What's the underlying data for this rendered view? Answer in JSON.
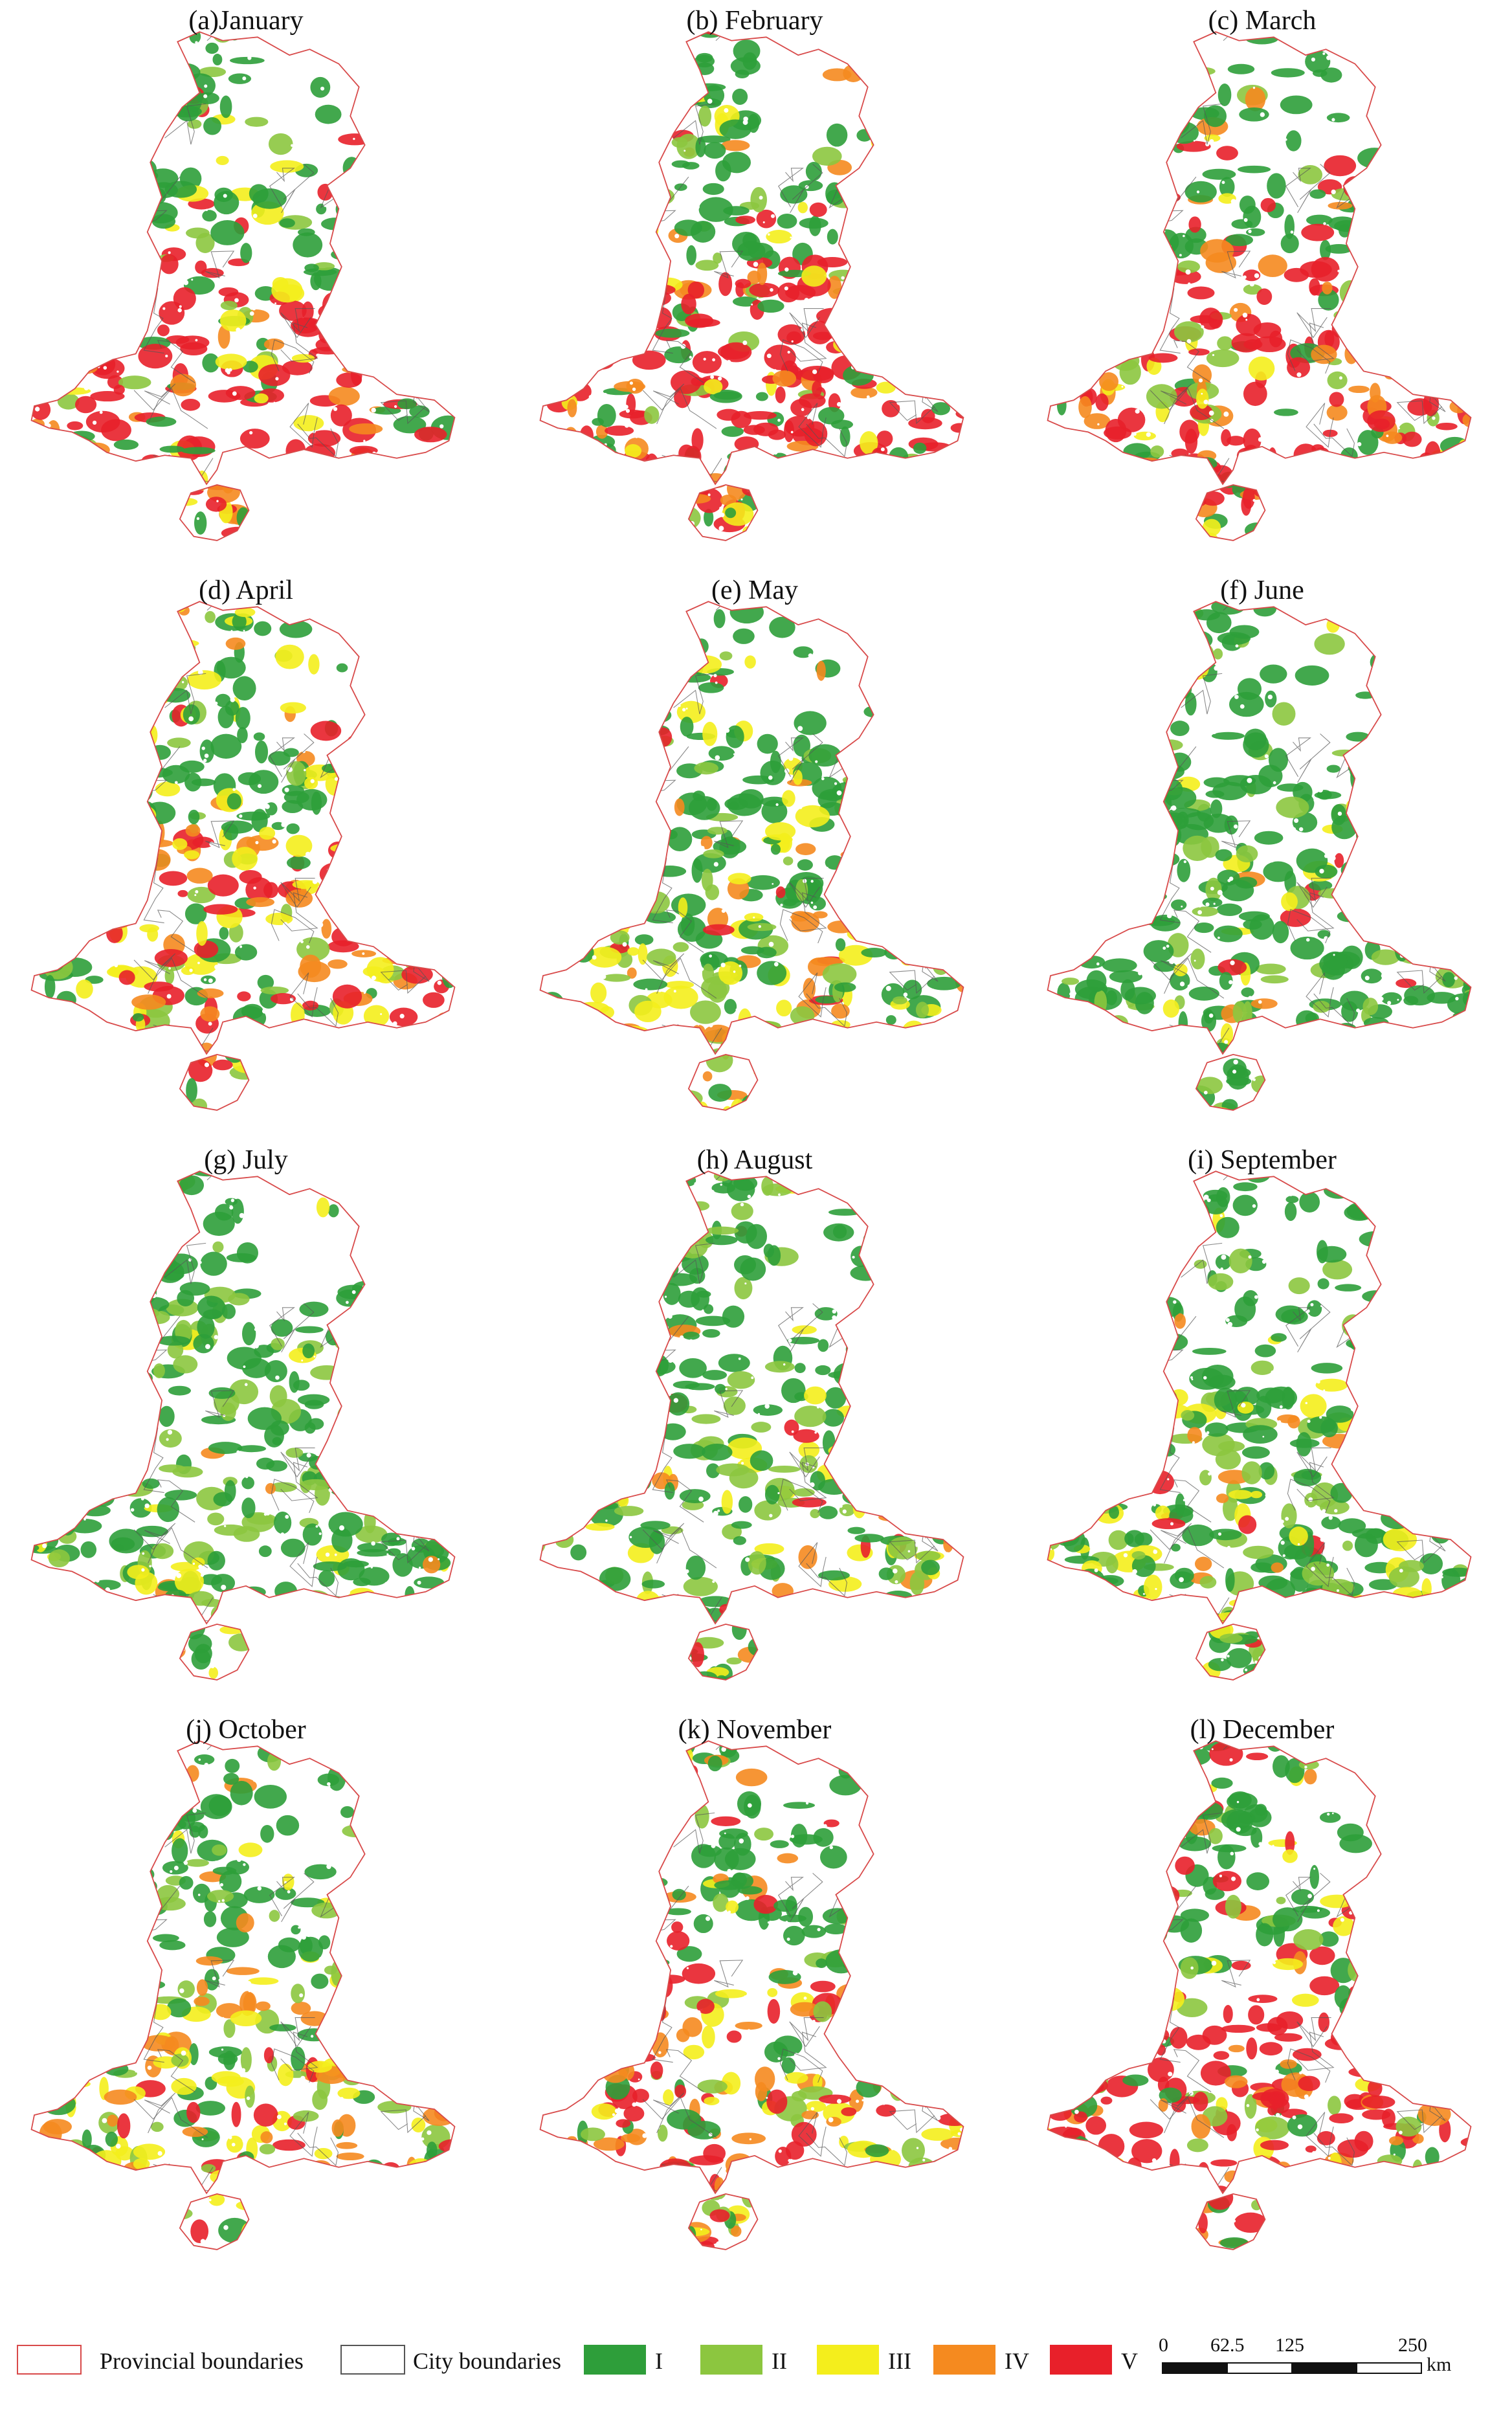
{
  "figure": {
    "panels": [
      {
        "label": "(a)January",
        "mix": [
          0.22,
          0.1,
          0.1,
          0.13,
          0.45
        ]
      },
      {
        "label": "(b) February",
        "mix": [
          0.23,
          0.1,
          0.1,
          0.12,
          0.45
        ]
      },
      {
        "label": "(c) March",
        "mix": [
          0.2,
          0.1,
          0.1,
          0.17,
          0.43
        ]
      },
      {
        "label": "(d) April",
        "mix": [
          0.27,
          0.12,
          0.25,
          0.18,
          0.18
        ]
      },
      {
        "label": "(e) May",
        "mix": [
          0.45,
          0.2,
          0.2,
          0.1,
          0.05
        ]
      },
      {
        "label": "(f) June",
        "mix": [
          0.62,
          0.22,
          0.11,
          0.03,
          0.02
        ]
      },
      {
        "label": "(g) July",
        "mix": [
          0.62,
          0.22,
          0.12,
          0.02,
          0.02
        ]
      },
      {
        "label": "(h) August",
        "mix": [
          0.58,
          0.23,
          0.13,
          0.03,
          0.03
        ]
      },
      {
        "label": "(i) September",
        "mix": [
          0.52,
          0.22,
          0.18,
          0.05,
          0.03
        ]
      },
      {
        "label": "(j) October",
        "mix": [
          0.3,
          0.15,
          0.25,
          0.2,
          0.1
        ]
      },
      {
        "label": "(k) November",
        "mix": [
          0.22,
          0.15,
          0.15,
          0.18,
          0.3
        ]
      },
      {
        "label": "(l) December",
        "mix": [
          0.2,
          0.1,
          0.1,
          0.15,
          0.45
        ]
      }
    ]
  },
  "legend": {
    "provincial_label": "Provincial boundaries",
    "city_label": "City boundaries",
    "classes": [
      {
        "label": "I",
        "color": "#2e9e3a"
      },
      {
        "label": "II",
        "color": "#8cc63f"
      },
      {
        "label": "III",
        "color": "#f4ee1c"
      },
      {
        "label": "IV",
        "color": "#f58a1f"
      },
      {
        "label": "V",
        "color": "#e8202a"
      }
    ],
    "provincial_color": "#d84a4a",
    "city_color": "#555555"
  },
  "scalebar": {
    "ticks": [
      "0",
      "62.5",
      "125",
      "250"
    ],
    "unit": "km"
  }
}
